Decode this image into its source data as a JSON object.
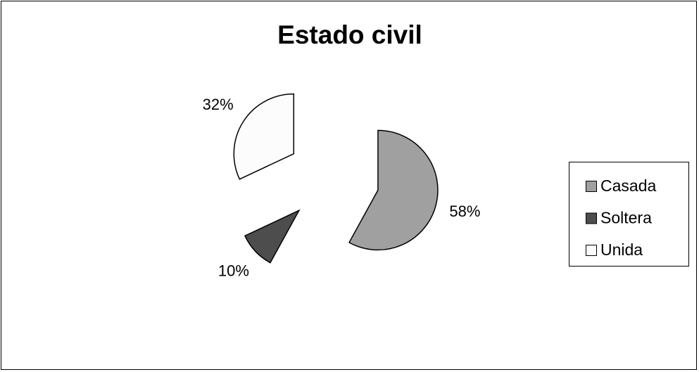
{
  "chart_data": {
    "type": "pie",
    "title": "Estado civil",
    "categories": [
      "Casada",
      "Soltera",
      "Unida"
    ],
    "values": [
      58,
      10,
      32
    ],
    "value_labels": [
      "58%",
      "10%",
      "32%"
    ],
    "colors": [
      "#a0a0a0",
      "#4d4d4d",
      "#fcfcfc"
    ],
    "exploded": true,
    "legend": "right"
  }
}
